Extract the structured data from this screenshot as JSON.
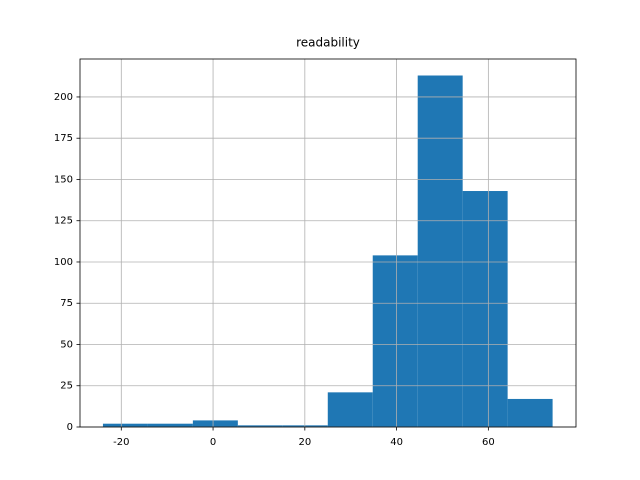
{
  "chart_data": {
    "type": "histogram",
    "title": "readability",
    "bins": [
      -24,
      -14.2,
      -4.4,
      5.4,
      15.2,
      25,
      34.8,
      44.6,
      54.4,
      64.2,
      74
    ],
    "values": [
      2,
      2,
      4,
      1,
      1,
      21,
      104,
      213,
      143,
      17
    ],
    "color": "#1f77b4",
    "xlim": [
      -29,
      79.1
    ],
    "xticks": [
      -20,
      0,
      20,
      40,
      60
    ],
    "ylim": [
      0,
      223
    ],
    "yticks": [
      0,
      25,
      50,
      75,
      100,
      125,
      150,
      175,
      200
    ],
    "grid": true
  }
}
